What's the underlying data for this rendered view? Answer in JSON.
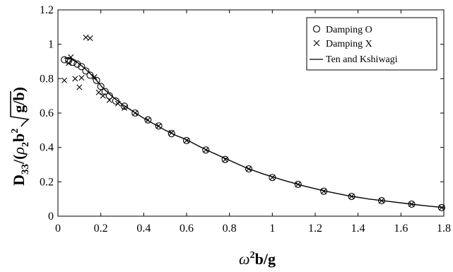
{
  "chart_data": {
    "type": "scatter",
    "xlabel_parts": {
      "omega": "ω",
      "sup": "2",
      "rest": "b/g"
    },
    "ylabel_parts": {
      "D": "D",
      "sub33": "33",
      "open": "/(",
      "rho": "ρ",
      "sub2": "2",
      "b": "b",
      "sup2": "2",
      "g": "g",
      "slash": "/",
      "b2": "b",
      "close": ")"
    },
    "xlim": [
      0,
      1.8
    ],
    "ylim": [
      0,
      1.2
    ],
    "x_ticks": [
      "0",
      "0.2",
      "0.4",
      "0.6",
      "0.8",
      "1",
      "1.2",
      "1.4",
      "1.6",
      "1.8"
    ],
    "y_ticks": [
      "0",
      "0.2",
      "0.4",
      "0.6",
      "0.8",
      "1",
      "1.2"
    ],
    "grid": false,
    "legend_position": "top-right",
    "series": [
      {
        "name": "Damping O",
        "marker": "circle",
        "points": [
          [
            0.03,
            0.91
          ],
          [
            0.05,
            0.905
          ],
          [
            0.07,
            0.895
          ],
          [
            0.09,
            0.885
          ],
          [
            0.11,
            0.87
          ],
          [
            0.13,
            0.845
          ],
          [
            0.15,
            0.82
          ],
          [
            0.18,
            0.79
          ],
          [
            0.2,
            0.755
          ],
          [
            0.22,
            0.725
          ],
          [
            0.24,
            0.7
          ],
          [
            0.27,
            0.67
          ],
          [
            0.31,
            0.64
          ],
          [
            0.36,
            0.6
          ],
          [
            0.42,
            0.56
          ],
          [
            0.47,
            0.525
          ],
          [
            0.53,
            0.48
          ],
          [
            0.6,
            0.44
          ],
          [
            0.69,
            0.385
          ],
          [
            0.78,
            0.33
          ],
          [
            0.89,
            0.275
          ],
          [
            1.0,
            0.225
          ],
          [
            1.12,
            0.185
          ],
          [
            1.24,
            0.145
          ],
          [
            1.37,
            0.115
          ],
          [
            1.51,
            0.09
          ],
          [
            1.65,
            0.07
          ],
          [
            1.79,
            0.05
          ]
        ]
      },
      {
        "name": "Damping X",
        "marker": "x",
        "points": [
          [
            0.03,
            0.79
          ],
          [
            0.05,
            0.89
          ],
          [
            0.06,
            0.925
          ],
          [
            0.08,
            0.8
          ],
          [
            0.1,
            0.75
          ],
          [
            0.11,
            0.805
          ],
          [
            0.13,
            1.04
          ],
          [
            0.15,
            1.035
          ],
          [
            0.17,
            0.81
          ],
          [
            0.19,
            0.72
          ],
          [
            0.21,
            0.7
          ],
          [
            0.24,
            0.675
          ],
          [
            0.28,
            0.655
          ],
          [
            0.31,
            0.63
          ],
          [
            0.36,
            0.6
          ],
          [
            0.42,
            0.56
          ],
          [
            0.47,
            0.525
          ],
          [
            0.53,
            0.485
          ],
          [
            0.6,
            0.44
          ],
          [
            0.69,
            0.385
          ],
          [
            0.78,
            0.33
          ],
          [
            0.89,
            0.275
          ],
          [
            1.0,
            0.225
          ],
          [
            1.12,
            0.185
          ],
          [
            1.24,
            0.145
          ],
          [
            1.37,
            0.115
          ],
          [
            1.51,
            0.09
          ],
          [
            1.65,
            0.07
          ],
          [
            1.79,
            0.05
          ]
        ]
      },
      {
        "name": "Ten and Kshiwagi",
        "marker": "line",
        "points": [
          [
            0.03,
            0.92
          ],
          [
            0.06,
            0.915
          ],
          [
            0.09,
            0.895
          ],
          [
            0.12,
            0.865
          ],
          [
            0.15,
            0.83
          ],
          [
            0.18,
            0.79
          ],
          [
            0.21,
            0.745
          ],
          [
            0.25,
            0.7
          ],
          [
            0.3,
            0.65
          ],
          [
            0.35,
            0.61
          ],
          [
            0.4,
            0.57
          ],
          [
            0.45,
            0.535
          ],
          [
            0.5,
            0.5
          ],
          [
            0.55,
            0.47
          ],
          [
            0.6,
            0.445
          ],
          [
            0.66,
            0.405
          ],
          [
            0.72,
            0.37
          ],
          [
            0.8,
            0.325
          ],
          [
            0.88,
            0.28
          ],
          [
            0.96,
            0.245
          ],
          [
            1.05,
            0.21
          ],
          [
            1.15,
            0.175
          ],
          [
            1.25,
            0.145
          ],
          [
            1.35,
            0.12
          ],
          [
            1.45,
            0.1
          ],
          [
            1.55,
            0.085
          ],
          [
            1.65,
            0.07
          ],
          [
            1.72,
            0.06
          ],
          [
            1.8,
            0.05
          ]
        ]
      }
    ]
  }
}
